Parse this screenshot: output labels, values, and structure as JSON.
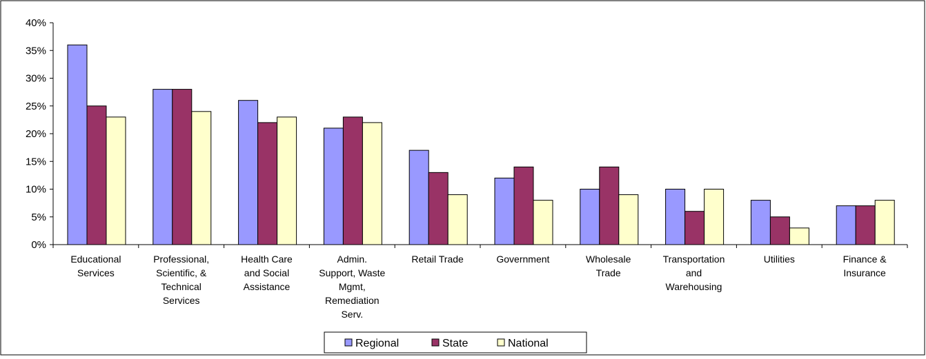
{
  "chart_data": {
    "type": "bar",
    "title": "",
    "xlabel": "",
    "ylabel": "",
    "ylim": [
      0,
      40
    ],
    "y_ticks": [
      "0%",
      "5%",
      "10%",
      "15%",
      "20%",
      "25%",
      "30%",
      "35%",
      "40%"
    ],
    "grid": false,
    "legend_position": "bottom",
    "categories": [
      [
        "Educational",
        "Services"
      ],
      [
        "Professional,",
        "Scientific, &",
        "Technical",
        "Services"
      ],
      [
        "Health Care",
        "and Social",
        "Assistance"
      ],
      [
        "Admin.",
        "Support, Waste",
        "Mgmt,",
        "Remediation",
        "Serv."
      ],
      [
        "Retail Trade"
      ],
      [
        "Government"
      ],
      [
        "Wholesale",
        "Trade"
      ],
      [
        "Transportation",
        "and",
        "Warehousing"
      ],
      [
        "Utilities"
      ],
      [
        "Finance &",
        "Insurance"
      ]
    ],
    "series": [
      {
        "name": "Regional",
        "color": "#9999ff",
        "values": [
          36,
          28,
          26,
          21,
          17,
          12,
          10,
          10,
          8,
          7
        ]
      },
      {
        "name": "State",
        "color": "#993366",
        "values": [
          25,
          28,
          22,
          23,
          13,
          14,
          14,
          6,
          5,
          7
        ]
      },
      {
        "name": "National",
        "color": "#ffffcc",
        "values": [
          23,
          24,
          23,
          22,
          9,
          8,
          9,
          10,
          3,
          8
        ]
      }
    ]
  }
}
